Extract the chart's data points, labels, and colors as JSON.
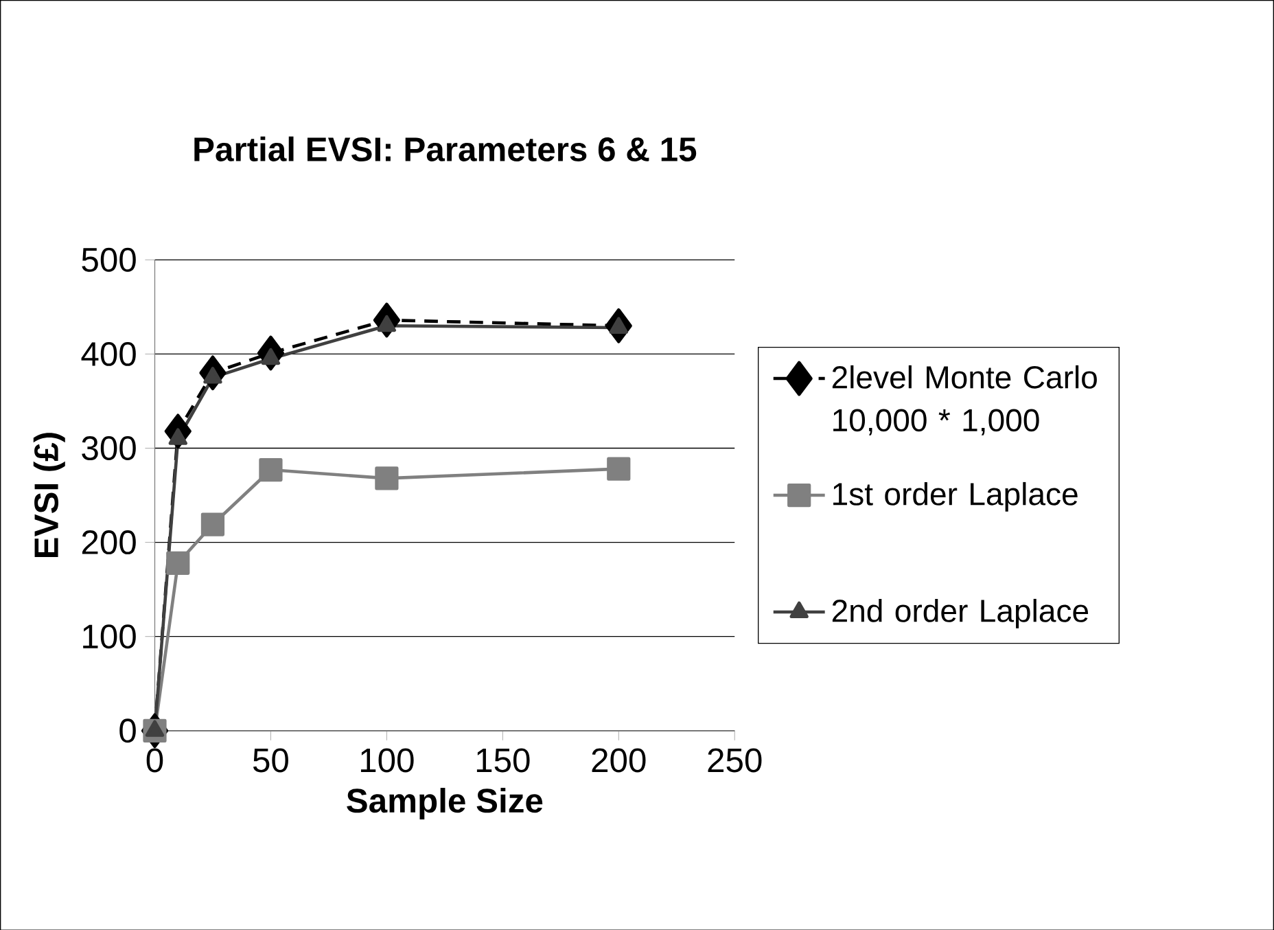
{
  "chart_data": {
    "type": "line",
    "title": "Partial EVSI: Parameters 6 & 15",
    "xlabel": "Sample Size",
    "ylabel": "EVSI (£)",
    "x": [
      0,
      10,
      25,
      50,
      100,
      200
    ],
    "series": [
      {
        "name": "2level Monte Carlo 10,000 * 1,000",
        "color": "#000000",
        "values": [
          0,
          318,
          380,
          401,
          436,
          430
        ],
        "marker": "diamond",
        "line_style": "dashed"
      },
      {
        "name": "1st order Laplace",
        "color": "#808080",
        "values": [
          0,
          178,
          219,
          277,
          268,
          278
        ],
        "marker": "square",
        "line_style": "solid"
      },
      {
        "name": "2nd order Laplace",
        "color": "#404040",
        "values": [
          0,
          310,
          375,
          395,
          430,
          428
        ],
        "marker": "triangle",
        "line_style": "solid"
      }
    ],
    "xlim": [
      0,
      250
    ],
    "xticks": [
      0,
      50,
      100,
      150,
      200,
      250
    ],
    "ylim": [
      0,
      500
    ],
    "yticks": [
      0,
      100,
      200,
      300,
      400,
      500
    ],
    "grid": "y",
    "legend": "right"
  }
}
